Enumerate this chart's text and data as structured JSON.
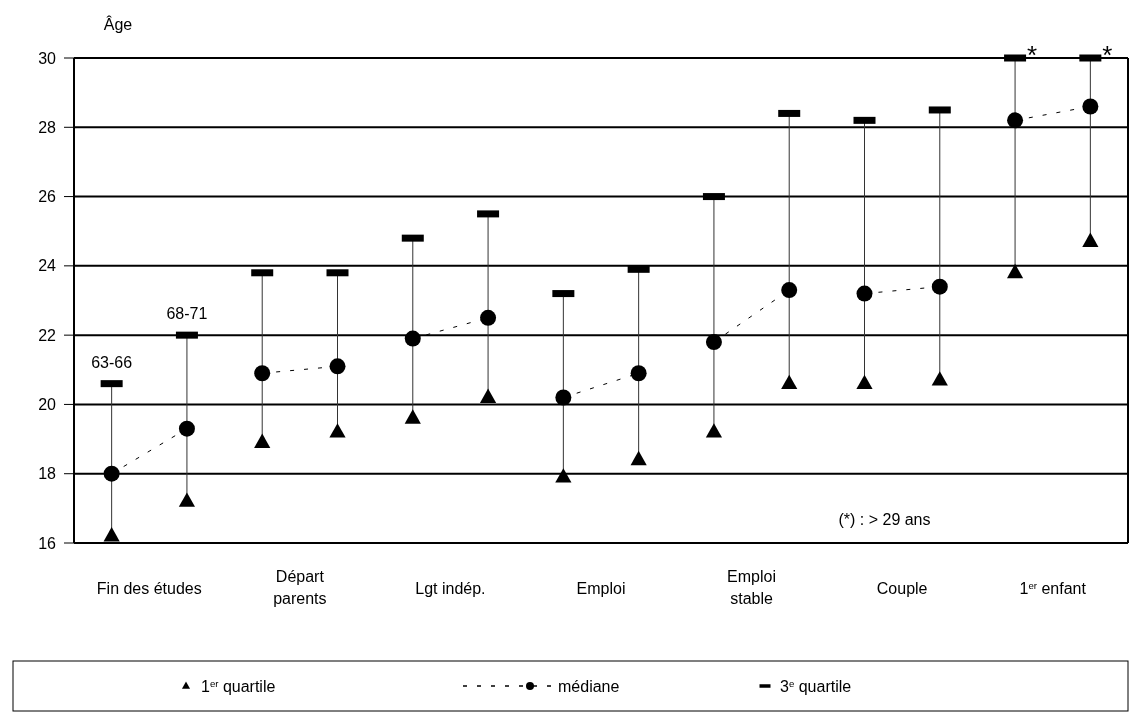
{
  "chart_data": {
    "type": "scatter",
    "ylabel": "Âge",
    "categories": [
      null,
      null,
      null,
      null,
      null,
      null,
      null,
      null,
      null,
      null,
      null,
      null,
      null,
      null
    ],
    "ylim": [
      16,
      30
    ],
    "yticks": [
      16,
      18,
      20,
      22,
      24,
      26,
      28,
      30
    ],
    "grid": "y",
    "legend": "bottom",
    "series": [
      {
        "name": "1$^{er}$ quartile",
        "marker": "triangle",
        "color": "#000000",
        "values": [
          16.2,
          17.2,
          18.9,
          19.2,
          19.6,
          20.2,
          17.9,
          18.4,
          19.2,
          20.6,
          20.6,
          20.7,
          23.8,
          24.7
        ]
      },
      {
        "name": "médiane",
        "type": "line",
        "marker": "circle",
        "line_style": "dashed",
        "color": "#000000",
        "values": [
          18.0,
          19.3,
          20.9,
          21.1,
          21.9,
          22.5,
          20.2,
          20.9,
          21.8,
          23.3,
          23.2,
          23.4,
          28.2,
          28.6
        ]
      },
      {
        "name": "3$^{e}$ quartile",
        "marker": "square",
        "color": "#000000",
        "values": [
          20.6,
          22.0,
          23.8,
          23.8,
          24.8,
          25.5,
          23.2,
          23.9,
          26.0,
          28.4,
          28.2,
          28.5,
          30,
          30
        ],
        "value_labels": [
          null,
          null,
          null,
          null,
          null,
          null,
          null,
          null,
          null,
          null,
          null,
          null,
          "*",
          "*"
        ]
      }
    ],
    "annotations": [
      "Fin des études",
      "Départ\nparents",
      "Lgt indép.",
      "Emploi",
      "Emploi\nstable",
      "Couple",
      "1$^{er}$ enfant",
      "63-66",
      "68-71",
      "(*) : > 29 ans"
    ]
  }
}
